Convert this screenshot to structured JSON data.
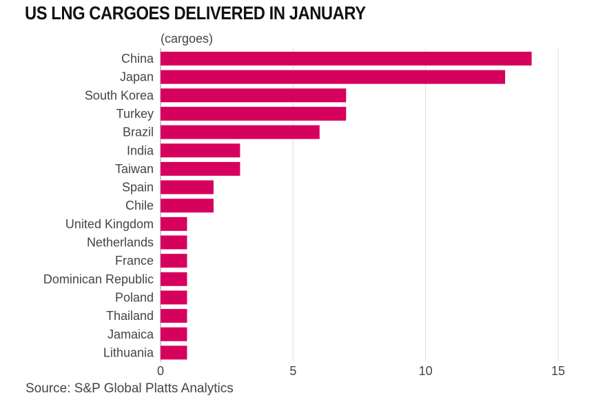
{
  "chart_data": {
    "type": "bar",
    "orientation": "horizontal",
    "title": "US LNG CARGOES DELIVERED IN JANUARY",
    "unit_label": "(cargoes)",
    "source": "Source: S&P Global Platts Analytics",
    "categories": [
      "China",
      "Japan",
      "South Korea",
      "Turkey",
      "Brazil",
      "India",
      "Taiwan",
      "Spain",
      "Chile",
      "United Kingdom",
      "Netherlands",
      "France",
      "Dominican Republic",
      "Poland",
      "Thailand",
      "Jamaica",
      "Lithuania"
    ],
    "values": [
      14,
      13,
      7,
      7,
      6,
      3,
      3,
      2,
      2,
      1,
      1,
      1,
      1,
      1,
      1,
      1,
      1
    ],
    "xlim": [
      0,
      15
    ],
    "xticks": [
      0,
      5,
      10,
      15
    ],
    "grid": "vertical",
    "color": "#d6005d"
  }
}
